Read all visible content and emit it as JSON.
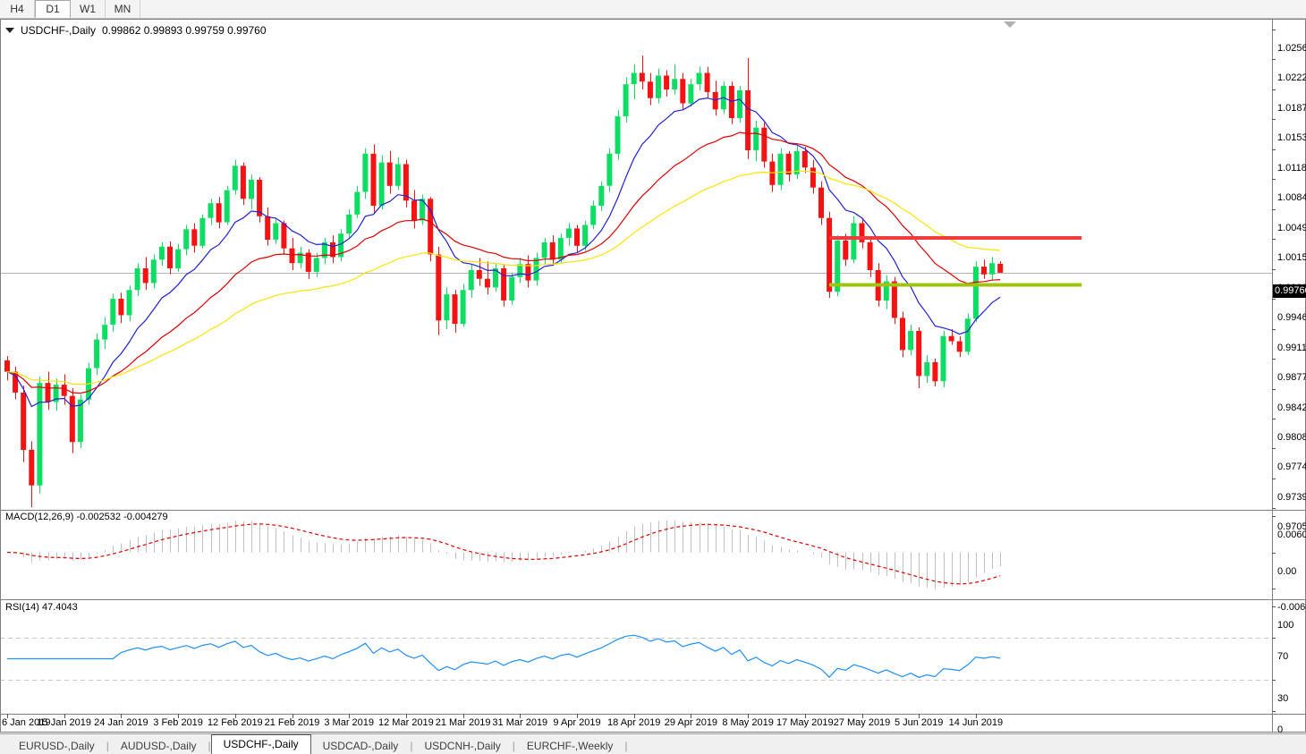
{
  "toolbar": {
    "buttons": [
      "H4",
      "D1",
      "W1",
      "MN"
    ],
    "active": "D1"
  },
  "chart_header": {
    "symbol": "USDCHF-,Daily",
    "ohlc_text": "0.99862 0.99893 0.99759 0.99760",
    "current_price_text": "0.99760"
  },
  "chart_data": {
    "type": "candlestick",
    "title": "USDCHF-,Daily",
    "x_tick_labels": [
      "6 Jan 2019",
      "15 Jan 2019",
      "24 Jan 2019",
      "3 Feb 2019",
      "12 Feb 2019",
      "21 Feb 2019",
      "3 Mar 2019",
      "12 Mar 2019",
      "21 Mar 2019",
      "31 Mar 2019",
      "9 Apr 2019",
      "18 Apr 2019",
      "29 Apr 2019",
      "8 May 2019",
      "17 May 2019",
      "27 May 2019",
      "5 Jun 2019",
      "14 Jun 2019"
    ],
    "bars_per_x_tick": 7,
    "price_axis_ticks": [
      "1.02560",
      "1.02220",
      "1.01870",
      "1.01530",
      "1.01180",
      "1.00840",
      "1.00490",
      "1.00150",
      "0.99800",
      "0.99460",
      "0.99110",
      "0.98770",
      "0.98420",
      "0.98080",
      "0.97740",
      "0.97390",
      "0.97050"
    ],
    "current_price": 0.9976,
    "candles": [
      [
        0.9875,
        0.988,
        0.9852,
        0.9862
      ],
      [
        0.9862,
        0.9868,
        0.983,
        0.9838
      ],
      [
        0.9838,
        0.9846,
        0.9758,
        0.9772
      ],
      [
        0.9772,
        0.9782,
        0.9706,
        0.9731
      ],
      [
        0.9731,
        0.9856,
        0.9722,
        0.9849
      ],
      [
        0.9849,
        0.9862,
        0.9818,
        0.9827
      ],
      [
        0.9827,
        0.9854,
        0.9817,
        0.9847
      ],
      [
        0.9847,
        0.9859,
        0.9824,
        0.9834
      ],
      [
        0.9834,
        0.9843,
        0.9768,
        0.9781
      ],
      [
        0.9781,
        0.9836,
        0.9774,
        0.983
      ],
      [
        0.983,
        0.9872,
        0.9824,
        0.9866
      ],
      [
        0.9866,
        0.9906,
        0.9858,
        0.9899
      ],
      [
        0.9899,
        0.9925,
        0.9888,
        0.9916
      ],
      [
        0.9916,
        0.9952,
        0.9908,
        0.9946
      ],
      [
        0.9946,
        0.9953,
        0.9918,
        0.9927
      ],
      [
        0.9927,
        0.9961,
        0.992,
        0.9956
      ],
      [
        0.9956,
        0.9987,
        0.9949,
        0.9981
      ],
      [
        0.9981,
        0.9994,
        0.9956,
        0.9964
      ],
      [
        0.9964,
        0.9997,
        0.9958,
        0.9991
      ],
      [
        0.9991,
        1.0011,
        0.9984,
        1.0006
      ],
      [
        1.0006,
        1.0012,
        0.9974,
        0.9981
      ],
      [
        0.9981,
        1.0009,
        0.9977,
        1.0003
      ],
      [
        1.0003,
        1.0031,
        0.9996,
        1.0026
      ],
      [
        1.0026,
        1.0033,
        0.9999,
        1.0007
      ],
      [
        1.0007,
        1.0043,
        1.0004,
        1.0039
      ],
      [
        1.0039,
        1.0061,
        1.0031,
        1.0056
      ],
      [
        1.0056,
        1.0063,
        1.0027,
        1.0034
      ],
      [
        1.0034,
        1.0076,
        1.0031,
        1.0071
      ],
      [
        1.0071,
        1.0106,
        1.0066,
        1.0099
      ],
      [
        1.0099,
        1.0103,
        1.0054,
        1.0061
      ],
      [
        1.0061,
        1.0089,
        1.0049,
        1.0083
      ],
      [
        1.0083,
        1.0086,
        1.0034,
        1.0041
      ],
      [
        1.0041,
        1.0051,
        1.0007,
        1.0014
      ],
      [
        1.0014,
        1.0039,
        1.0009,
        1.0033
      ],
      [
        1.0033,
        1.0036,
        0.9997,
        1.0004
      ],
      [
        1.0004,
        1.0016,
        0.9979,
        0.9987
      ],
      [
        0.9987,
        1.0006,
        0.9981,
        0.9999
      ],
      [
        0.9999,
        1.0003,
        0.9969,
        0.9977
      ],
      [
        0.9977,
        0.9999,
        0.9971,
        0.9993
      ],
      [
        0.9993,
        1.0016,
        0.9986,
        1.0011
      ],
      [
        1.0011,
        1.0019,
        0.9987,
        0.9994
      ],
      [
        0.9994,
        1.0026,
        0.9989,
        1.0021
      ],
      [
        1.0021,
        1.0049,
        1.0016,
        1.0043
      ],
      [
        1.0043,
        1.0076,
        1.0039,
        1.0069
      ],
      [
        1.0069,
        1.0119,
        1.0061,
        1.0113
      ],
      [
        1.0113,
        1.0124,
        1.0044,
        1.0053
      ],
      [
        1.0053,
        1.0111,
        1.0049,
        1.0103
      ],
      [
        1.0103,
        1.0116,
        1.0067,
        1.0076
      ],
      [
        1.0076,
        1.0109,
        1.0071,
        1.0101
      ],
      [
        1.0101,
        1.0106,
        1.0051,
        1.0059
      ],
      [
        1.0059,
        1.0071,
        1.0027,
        1.0036
      ],
      [
        1.0036,
        1.0066,
        1.0031,
        1.0061
      ],
      [
        1.0061,
        1.0063,
        0.9989,
        0.9997
      ],
      [
        0.9997,
        1.0006,
        0.9904,
        0.9921
      ],
      [
        0.9921,
        0.9959,
        0.9911,
        0.9951
      ],
      [
        0.9951,
        0.9956,
        0.9907,
        0.9917
      ],
      [
        0.9917,
        0.9963,
        0.9914,
        0.9956
      ],
      [
        0.9956,
        0.9986,
        0.9947,
        0.9979
      ],
      [
        0.9979,
        0.9993,
        0.9961,
        0.9969
      ],
      [
        0.9969,
        0.9989,
        0.9951,
        0.9959
      ],
      [
        0.9959,
        0.9986,
        0.9954,
        0.9981
      ],
      [
        0.9981,
        0.9986,
        0.9937,
        0.9944
      ],
      [
        0.9944,
        0.9976,
        0.9939,
        0.9971
      ],
      [
        0.9971,
        0.9993,
        0.9964,
        0.9986
      ],
      [
        0.9986,
        0.9996,
        0.9959,
        0.9967
      ],
      [
        0.9967,
        0.9999,
        0.9961,
        0.9993
      ],
      [
        0.9993,
        1.0016,
        0.9986,
        1.0011
      ],
      [
        1.0011,
        1.0019,
        0.9984,
        0.9991
      ],
      [
        0.9991,
        1.0021,
        0.9987,
        1.0016
      ],
      [
        1.0016,
        1.0033,
        1.0007,
        1.0027
      ],
      [
        1.0027,
        1.0031,
        0.9999,
        1.0007
      ],
      [
        1.0007,
        1.0036,
        1.0001,
        1.0031
      ],
      [
        1.0031,
        1.0059,
        1.0026,
        1.0053
      ],
      [
        1.0053,
        1.0081,
        1.0047,
        1.0076
      ],
      [
        1.0076,
        1.0119,
        1.0069,
        1.0113
      ],
      [
        1.0113,
        1.0163,
        1.0106,
        1.0156
      ],
      [
        1.0156,
        1.0201,
        1.0149,
        1.0193
      ],
      [
        1.0193,
        1.0216,
        1.0176,
        1.0206
      ],
      [
        1.0206,
        1.0226,
        1.0187,
        1.0196
      ],
      [
        1.0196,
        1.0206,
        1.0169,
        1.0177
      ],
      [
        1.0177,
        1.0211,
        1.0171,
        1.0203
      ],
      [
        1.0203,
        1.0209,
        1.0179,
        1.0187
      ],
      [
        1.0187,
        1.0216,
        1.0181,
        1.0199
      ],
      [
        1.0199,
        1.0206,
        1.0164,
        1.0171
      ],
      [
        1.0171,
        1.0199,
        1.0167,
        1.0193
      ],
      [
        1.0193,
        1.0213,
        1.0186,
        1.0206
      ],
      [
        1.0206,
        1.0213,
        1.0177,
        1.0184
      ],
      [
        1.0184,
        1.0197,
        1.0157,
        1.0164
      ],
      [
        1.0164,
        1.0196,
        1.0159,
        1.0191
      ],
      [
        1.0191,
        1.0196,
        1.0147,
        1.0154
      ],
      [
        1.0154,
        1.0191,
        1.0149,
        1.0186
      ],
      [
        1.0186,
        1.0223,
        1.0107,
        1.0117
      ],
      [
        1.0117,
        1.0151,
        1.0104,
        1.0143
      ],
      [
        1.0143,
        1.0149,
        1.0097,
        1.0104
      ],
      [
        1.0104,
        1.0113,
        1.0069,
        1.0077
      ],
      [
        1.0077,
        1.0119,
        1.0071,
        1.0113
      ],
      [
        1.0113,
        1.0116,
        1.0081,
        1.0089
      ],
      [
        1.0089,
        1.0123,
        1.0084,
        1.0116
      ],
      [
        1.0116,
        1.0121,
        1.0091,
        1.0097
      ],
      [
        1.0097,
        1.0106,
        1.0067,
        1.0074
      ],
      [
        1.0074,
        1.0081,
        1.0031,
        1.0039
      ],
      [
        1.0039,
        1.0046,
        0.9947,
        0.9954
      ],
      [
        0.9954,
        1.0019,
        0.9949,
        1.0013
      ],
      [
        1.0013,
        1.0021,
        0.9984,
        0.9991
      ],
      [
        0.9991,
        1.0041,
        0.9987,
        1.0033
      ],
      [
        1.0033,
        1.0039,
        1.0004,
        1.0011
      ],
      [
        1.0011,
        1.0017,
        0.9971,
        0.9979
      ],
      [
        0.9979,
        0.9987,
        0.9937,
        0.9944
      ],
      [
        0.9944,
        0.9973,
        0.9934,
        0.9966
      ],
      [
        0.9966,
        0.9971,
        0.9917,
        0.9924
      ],
      [
        0.9924,
        0.9931,
        0.9879,
        0.9887
      ],
      [
        0.9887,
        0.9916,
        0.9881,
        0.9909
      ],
      [
        0.9909,
        0.9913,
        0.9843,
        0.9857
      ],
      [
        0.9857,
        0.9881,
        0.9849,
        0.9873
      ],
      [
        0.9873,
        0.9877,
        0.9845,
        0.9851
      ],
      [
        0.9851,
        0.9909,
        0.9844,
        0.9903
      ],
      [
        0.9903,
        0.9911,
        0.9893,
        0.9897
      ],
      [
        0.9897,
        0.9903,
        0.9879,
        0.9885
      ],
      [
        0.9885,
        0.9929,
        0.9881,
        0.9923
      ],
      [
        0.9923,
        0.9989,
        0.9919,
        0.9983
      ],
      [
        0.9983,
        0.9991,
        0.9969,
        0.9974
      ],
      [
        0.9974,
        0.9994,
        0.9967,
        0.9987
      ],
      [
        0.99862,
        0.99893,
        0.99759,
        0.9976
      ]
    ],
    "moving_averages": [
      {
        "name": "fast",
        "period": 10,
        "color": "#2121d6"
      },
      {
        "name": "mid",
        "period": 25,
        "color": "#e00000"
      },
      {
        "name": "slow",
        "period": 50,
        "color": "#ffe400"
      }
    ],
    "horizontal_lines": [
      {
        "name": "resistance-ray",
        "price": 1.0016,
        "color": "#f23b3b",
        "width": 4,
        "x1_bar": 101,
        "x2_bar": 132
      },
      {
        "name": "support-ray",
        "price": 0.9962,
        "color": "#9fc40f",
        "width": 4,
        "x1_bar": 101,
        "x2_bar": 132
      }
    ],
    "macd": {
      "fast": 12,
      "slow": 26,
      "signal": 9,
      "display_label": "MACD(12,26,9) -0.002532 -0.004279",
      "axis_ticks": [
        "0.006058",
        "0.00",
        "-0.006091"
      ],
      "histogram_color": "#c0c0c0",
      "signal_color": "#e00000"
    },
    "rsi": {
      "period": 14,
      "display_label": "RSI(14) 47.4043",
      "value": 47.4043,
      "axis_ticks": [
        100,
        70,
        30,
        0
      ],
      "dashed_levels": [
        70,
        30
      ],
      "color": "#1e8fff"
    }
  },
  "colors": {
    "candle_up": "#0ddd63",
    "candle_down": "#f41212",
    "price_line": "#b4b4b4",
    "panel_border": "#808080",
    "grid_dash": "#c9c9c9",
    "shift_marker": "#b0b0b0"
  },
  "tabs": {
    "items": [
      "EURUSD-,Daily",
      "AUDUSD-,Daily",
      "USDCHF-,Daily",
      "USDCAD-,Daily",
      "USDCNH-,Daily",
      "EURCHF-,Weekly"
    ],
    "active_index": 2
  }
}
